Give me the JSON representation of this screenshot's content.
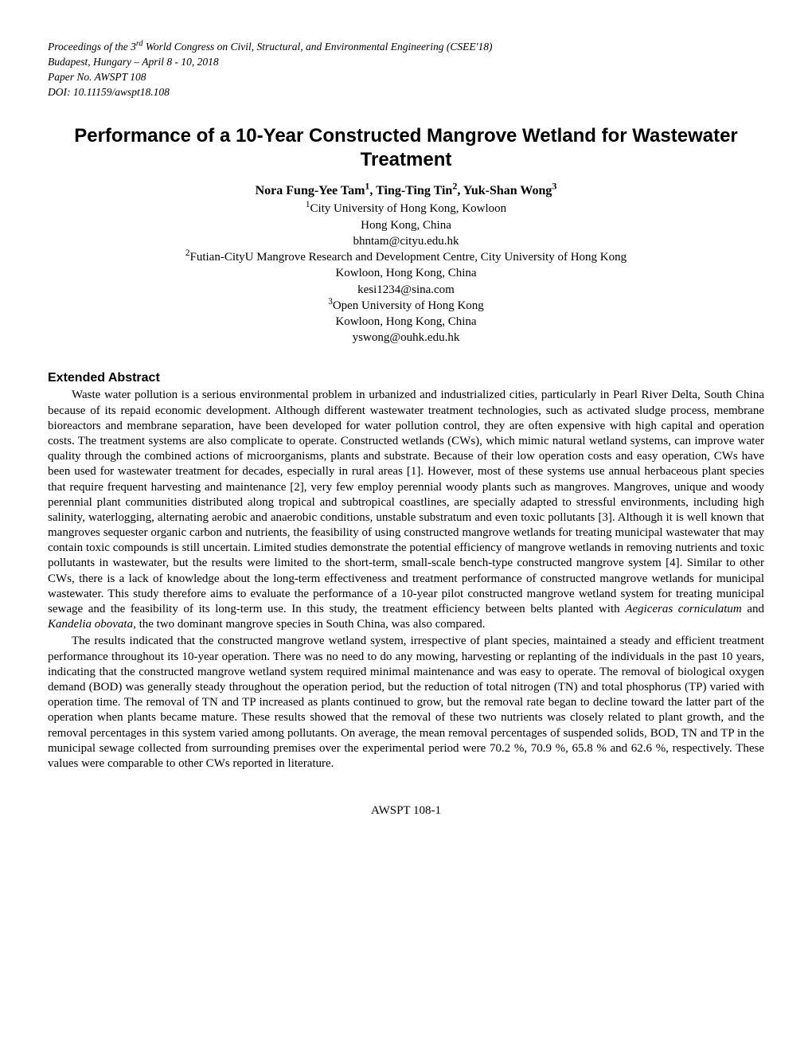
{
  "header": {
    "line1_prefix": "Proceedings of the 3",
    "line1_sup": "rd",
    "line1_suffix": " World Congress on Civil, Structural, and Environmental Engineering (CSEE'18)",
    "line2": "Budapest, Hungary – April 8 - 10, 2018",
    "line3": "Paper No. AWSPT 108",
    "line4": "DOI: 10.11159/awspt18.108"
  },
  "title": "Performance of a 10-Year Constructed Mangrove Wetland for Wastewater Treatment",
  "authors": {
    "a1_name": "Nora Fung-Yee Tam",
    "a1_sup": "1",
    "sep1": ", ",
    "a2_name": "Ting-Ting Tin",
    "a2_sup": "2",
    "sep2": ", ",
    "a3_name": "Yuk-Shan Wong",
    "a3_sup": "3"
  },
  "affiliations": {
    "sup1": "1",
    "aff1_line1": "City University of Hong Kong, Kowloon",
    "aff1_line2": "Hong Kong, China",
    "aff1_email": "bhntam@cityu.edu.hk",
    "sup2": "2",
    "aff2_line1": "Futian-CityU Mangrove Research and Development Centre, City University of Hong Kong",
    "aff2_line2": "Kowloon, Hong Kong, China",
    "aff2_email": "kesi1234@sina.com",
    "sup3": "3",
    "aff3_line1": "Open University of Hong Kong",
    "aff3_line2": "Kowloon, Hong Kong, China",
    "aff3_email": "yswong@ouhk.edu.hk"
  },
  "section_heading": "Extended Abstract",
  "para1_a": "Waste water pollution is a serious environmental problem in urbanized and industrialized cities, particularly in Pearl River Delta, South China because of its repaid economic development. Although different wastewater treatment technologies, such as activated sludge process, membrane bioreactors and membrane separation, have been developed for water pollution control, they are often expensive with high capital and operation costs. The treatment systems are also complicate to operate. Constructed wetlands (CWs), which mimic natural wetland systems, can improve water quality through the combined actions of microorganisms, plants and substrate. Because of their low operation costs and easy operation, CWs have been used for wastewater treatment for decades, especially in rural areas [1]. However, most of these systems use annual herbaceous plant species that require frequent harvesting and maintenance [2], very few employ perennial woody plants such as mangroves. Mangroves, unique and woody perennial plant communities distributed along tropical and subtropical coastlines, are specially adapted to stressful environments, including high salinity, waterlogging, alternating aerobic and anaerobic conditions, unstable substratum and even toxic pollutants [3]. Although it is well known that mangroves sequester organic carbon and nutrients, the feasibility of using constructed mangrove wetlands for treating municipal wastewater that may contain toxic compounds is still uncertain. Limited studies demonstrate the potential efficiency of mangrove wetlands in removing nutrients and toxic pollutants in wastewater, but the results were limited to the short-term, small-scale bench-type constructed mangrove system [4]. Similar to other CWs, there is a lack of knowledge about the long-term effectiveness and treatment performance of constructed mangrove wetlands for municipal wastewater. This study therefore aims to evaluate the performance of a 10-year pilot constructed mangrove wetland system for treating municipal sewage and the feasibility of its long-term use. In this study, the treatment efficiency between belts planted with ",
  "para1_italic1": "Aegiceras corniculatum",
  "para1_b": " and ",
  "para1_italic2": "Kandelia obovata",
  "para1_c": ", the two dominant mangrove species in South China, was also compared.",
  "para2": "The results indicated that the constructed mangrove wetland system, irrespective of plant species, maintained a steady and efficient treatment performance throughout its 10-year operation. There was no need to do any mowing, harvesting or replanting of the individuals in the past 10 years, indicating that the constructed mangrove wetland system required minimal maintenance and was easy to operate. The removal of biological oxygen demand (BOD) was generally steady throughout the operation period, but the reduction of total nitrogen (TN) and total phosphorus (TP) varied with operation time. The removal of TN and TP increased as plants continued to grow, but the removal rate began to decline toward the latter part of the operation when plants became mature. These results showed that the removal of these two nutrients was closely related to plant growth, and the removal percentages in this system varied among pollutants. On average, the mean removal percentages of suspended solids, BOD, TN and TP in the municipal sewage collected from surrounding premises over the experimental period were 70.2 %, 70.9 %, 65.8 % and 62.6 %, respectively. These values were comparable to other CWs reported in literature.",
  "footer": "AWSPT 108-1"
}
